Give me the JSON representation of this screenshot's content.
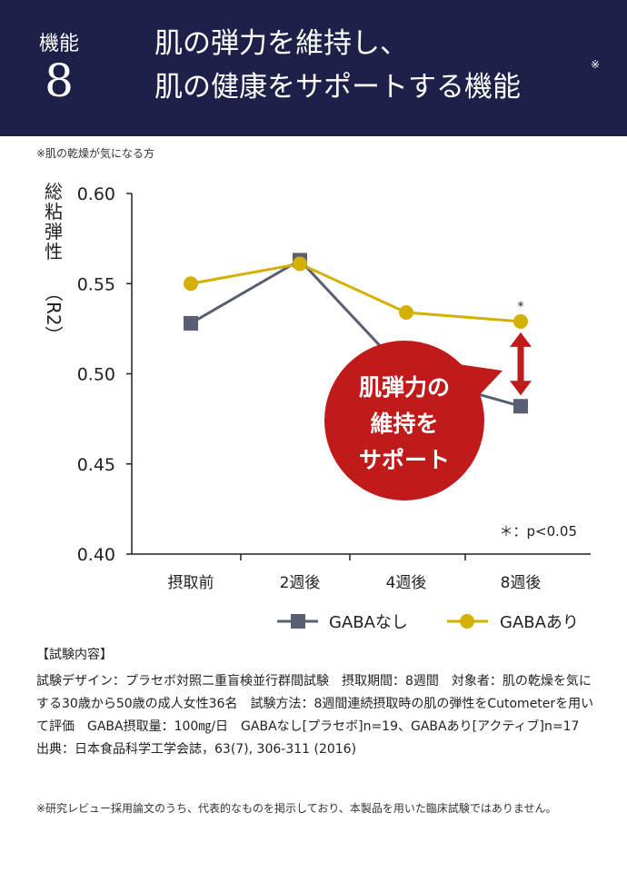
{
  "header": {
    "feature_label": "機能",
    "feature_number": "8",
    "title_line1": "肌の弾力を維持し、",
    "title_line2": "肌の健康をサポートする機能",
    "title_mark": "※"
  },
  "note_top": "※肌の乾燥が気になる方",
  "chart_data": {
    "type": "line",
    "ylabel_chars": [
      "総",
      "粘",
      "弾",
      "性"
    ],
    "ylabel_paren": "（R2）",
    "ylim": [
      0.4,
      0.6
    ],
    "ytick_values": [
      0.4,
      0.45,
      0.5,
      0.55,
      0.6
    ],
    "yticks": [
      "0.40",
      "0.45",
      "0.50",
      "0.55",
      "0.60"
    ],
    "categories": [
      "摂取前",
      "2週後",
      "4週後",
      "8週後"
    ],
    "series": [
      {
        "name": "GABAなし",
        "values": [
          0.528,
          0.563,
          0.5,
          0.482
        ],
        "color": "#5a5e72",
        "marker": "square"
      },
      {
        "name": "GABAあり",
        "values": [
          0.55,
          0.561,
          0.534,
          0.529
        ],
        "color": "#d4b000",
        "marker": "circle"
      }
    ],
    "significance_mark": "*",
    "significance_note": "＊：p<0.05",
    "callout_lines": [
      "肌弾力の",
      "維持を",
      "サポート"
    ],
    "callout_color": "#c01a1a",
    "arrow_color": "#c01a1a",
    "legend_position": "bottom-right"
  },
  "info": {
    "heading": "【試験内容】",
    "body": "試験デザイン：プラセボ対照二重盲検並行群間試験　摂取期間：8週間　対象者：肌の乾燥を気にする30歳から50歳の成人女性36名　試験方法：8週間連続摂取時の肌の弾性をCutometerを用いて評価　GABA摂取量：100㎎/日　GABAなし[プラセボ]n=19、GABAあり[アクティブ]n=17　出典：日本食品科学工学会誌，63(7), 306-311 (2016)"
  },
  "disclaimer": "※研究レビュー採用論文のうち、代表的なものを掲示しており、本製品を用いた臨床試験ではありません。"
}
